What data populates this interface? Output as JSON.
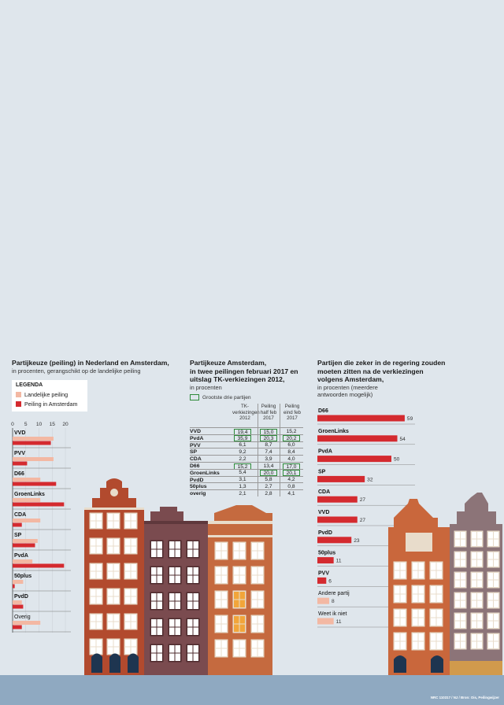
{
  "chart1": {
    "title": "Partijkeuze (peiling) in Nederland en Amsterdam,",
    "subtitle": "in procenten, gerangschikt op de landelijke peiling",
    "legend_title": "LEGENDA",
    "legend": [
      "Landelijke peiling",
      "Peiling in Amsterdam"
    ],
    "colors": {
      "landelijk": "#f3b8a3",
      "amsterdam": "#d42a2f"
    }
  },
  "chart2": {
    "title_line1": "Partijkeuze Amsterdam,",
    "title_line2": "in twee peilingen februari 2017 en",
    "title_line3": "uitslag TK-verkiezingen 2012,",
    "subtitle": "in procenten",
    "legend_label": "Grootste drie partijen",
    "col_headers": [
      [
        "TK-",
        "verkiezingen",
        "2012"
      ],
      [
        "Peiling",
        "half feb",
        "2017"
      ],
      [
        "Peiling",
        "eind feb",
        "2017"
      ]
    ]
  },
  "chart3": {
    "title_line1": "Partijen die zeker in de regering zouden",
    "title_line2": "moeten zitten na de verkiezingen",
    "title_line3": "volgens Amsterdam,",
    "subtitle_line1": "in procenten (meerdere",
    "subtitle_line2": "antwoorden mogelijk)"
  },
  "credit": "NRC 110317 / NJ / Bron: Ois, Peilingwijzer",
  "chart_data": [
    {
      "type": "bar",
      "orientation": "horizontal",
      "categories": [
        "VVD",
        "PVV",
        "D66",
        "GroenLinks",
        "CDA",
        "SP",
        "PvdA",
        "50plus",
        "PvdD",
        "Overig"
      ],
      "series": [
        {
          "name": "Landelijke peiling",
          "values": [
            15.5,
            15.5,
            10.5,
            10.5,
            10.5,
            9.5,
            7.5,
            4,
            3.5,
            10.5
          ]
        },
        {
          "name": "Peiling in Amsterdam",
          "values": [
            14.5,
            5.5,
            16.5,
            19.5,
            3.5,
            8.5,
            19.5,
            0.8,
            4,
            3.5
          ]
        }
      ],
      "x_ticks": [
        "0",
        "5",
        "10",
        "15",
        "20"
      ],
      "xlim": [
        0,
        20
      ],
      "legend_position": "top-left"
    },
    {
      "type": "table",
      "rows": [
        {
          "party": "VVD",
          "values": [
            "19,4",
            "15,0",
            "15,2"
          ],
          "highlight": [
            true,
            true,
            false
          ]
        },
        {
          "party": "PvdA",
          "values": [
            "35,9",
            "20,3",
            "20,2"
          ],
          "highlight": [
            true,
            true,
            true
          ]
        },
        {
          "party": "PVV",
          "values": [
            "6,1",
            "8,7",
            "6,0"
          ],
          "highlight": [
            false,
            false,
            false
          ]
        },
        {
          "party": "SP",
          "values": [
            "9,2",
            "7,4",
            "8,4"
          ],
          "highlight": [
            false,
            false,
            false
          ]
        },
        {
          "party": "CDA",
          "values": [
            "2,2",
            "3,9",
            "4,0"
          ],
          "highlight": [
            false,
            false,
            false
          ]
        },
        {
          "party": "D66",
          "values": [
            "15,2",
            "13,4",
            "17,0"
          ],
          "highlight": [
            true,
            false,
            true
          ]
        },
        {
          "party": "GroenLinks",
          "values": [
            "5,4",
            "20,0",
            "20,1"
          ],
          "highlight": [
            false,
            true,
            true
          ]
        },
        {
          "party": "PvdD",
          "values": [
            "3,1",
            "5,8",
            "4,2"
          ],
          "highlight": [
            false,
            false,
            false
          ]
        },
        {
          "party": "50plus",
          "values": [
            "1,3",
            "2,7",
            "0,8"
          ],
          "highlight": [
            false,
            false,
            false
          ]
        },
        {
          "party": "overig",
          "values": [
            "2,1",
            "2,8",
            "4,1"
          ],
          "highlight": [
            false,
            false,
            false
          ]
        }
      ]
    },
    {
      "type": "bar",
      "orientation": "horizontal",
      "categories": [
        "D66",
        "GroenLinks",
        "PvdA",
        "SP",
        "CDA",
        "VVD",
        "PvdD",
        "50plus",
        "PVV",
        "Andere partij",
        "Weet ik niet"
      ],
      "values": [
        59,
        54,
        50,
        32,
        27,
        27,
        23,
        11,
        6,
        8,
        11
      ],
      "colors": [
        "#d42a2f",
        "#d42a2f",
        "#d42a2f",
        "#d42a2f",
        "#d42a2f",
        "#d42a2f",
        "#d42a2f",
        "#d42a2f",
        "#d42a2f",
        "#f3b8a3",
        "#f3b8a3"
      ]
    }
  ]
}
